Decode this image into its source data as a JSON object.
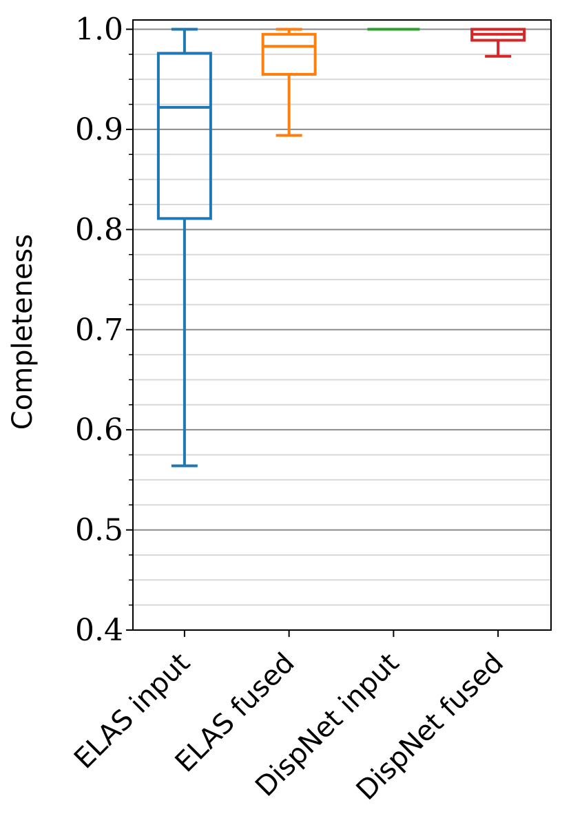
{
  "chart_data": {
    "type": "box",
    "title": "",
    "xlabel": "",
    "ylabel": "Completeness",
    "ylim": [
      0.4,
      1.0
    ],
    "yticks_major": [
      "0.4",
      "0.5",
      "0.6",
      "0.7",
      "0.8",
      "0.9",
      "1.0"
    ],
    "minor_tick_step": 0.025,
    "grid": "major dark, minor light, horizontal",
    "categories": [
      "ELAS input",
      "ELAS fused",
      "DispNet input",
      "DispNet fused"
    ],
    "series": [
      {
        "category": "ELAS input",
        "color": "#1f77b4",
        "whisker_low": 0.564,
        "q1": 0.811,
        "median": 0.922,
        "q3": 0.976,
        "whisker_high": 1.0
      },
      {
        "category": "ELAS fused",
        "color": "#ff7f0e",
        "whisker_low": 0.894,
        "q1": 0.955,
        "median": 0.983,
        "q3": 0.995,
        "whisker_high": 1.0
      },
      {
        "category": "DispNet input",
        "color": "#2ca02c",
        "whisker_low": 1.0,
        "q1": 1.0,
        "median": 1.0,
        "q3": 1.0,
        "whisker_high": 1.0
      },
      {
        "category": "DispNet fused",
        "color": "#d62728",
        "whisker_low": 0.973,
        "q1": 0.989,
        "median": 0.995,
        "q3": 1.0,
        "whisker_high": 1.0
      }
    ]
  }
}
